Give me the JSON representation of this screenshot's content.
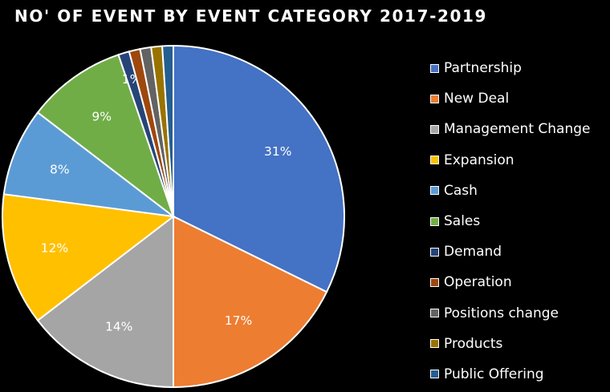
{
  "chart_data": {
    "type": "pie",
    "title": "NO' OF EVENT BY EVENT CATEGORY 2017-2019",
    "legend_position": "right",
    "categories": [
      "Partnership",
      "New Deal",
      "Management Change",
      "Expansion",
      "Cash",
      "Sales",
      "Demand",
      "Operation",
      "Positions change",
      "Products",
      "Public Offering"
    ],
    "values": [
      31,
      17,
      14,
      12,
      8,
      9,
      1,
      1,
      1,
      1,
      1
    ],
    "data_labels": [
      "31%",
      "17%",
      "14%",
      "12%",
      "8%",
      "9%",
      "1%",
      "",
      "",
      "",
      ""
    ],
    "colors": [
      "#4472C4",
      "#ED7D31",
      "#A5A5A5",
      "#FFC000",
      "#5B9BD5",
      "#70AD47",
      "#264478",
      "#9E480E",
      "#636363",
      "#997300",
      "#255E91"
    ]
  }
}
